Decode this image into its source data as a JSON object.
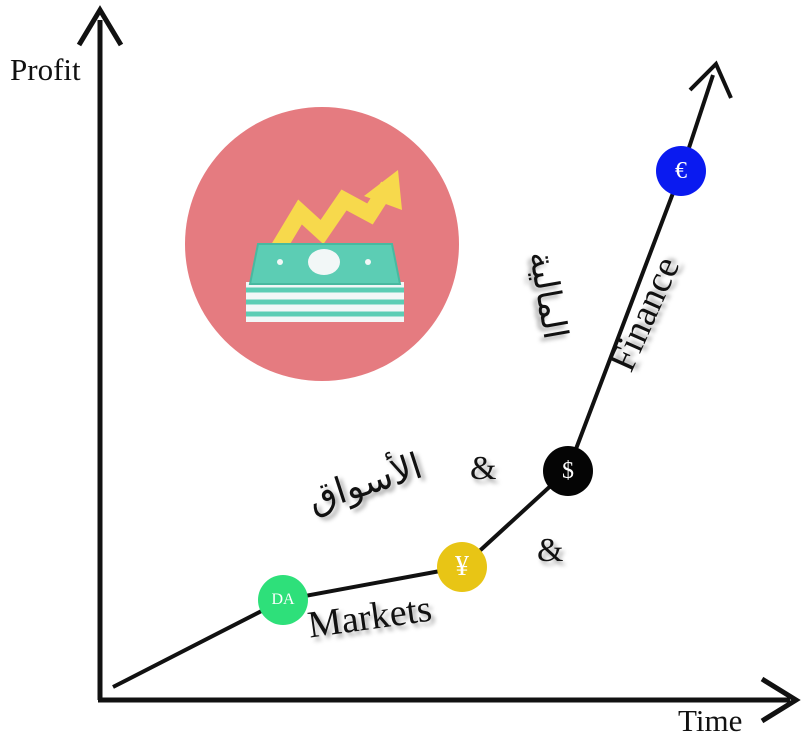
{
  "axes": {
    "y_label": "Profit",
    "x_label": "Time"
  },
  "labels": {
    "markets": "Markets",
    "finance": "Finance",
    "arabic_markets": "الأسواق",
    "arabic_finance": "المالية",
    "ampersand": "&"
  },
  "nodes": [
    {
      "symbol": "DA",
      "color": "#2ee07a"
    },
    {
      "symbol": "¥",
      "color": "#e8c515"
    },
    {
      "symbol": "$",
      "color": "#050505"
    },
    {
      "symbol": "€",
      "color": "#0a1af0"
    }
  ],
  "icon": {
    "name": "money-growth-icon",
    "circle_color": "#e57b80",
    "arrow_color": "#f7d94c",
    "money_color": "#5ccdb4"
  }
}
